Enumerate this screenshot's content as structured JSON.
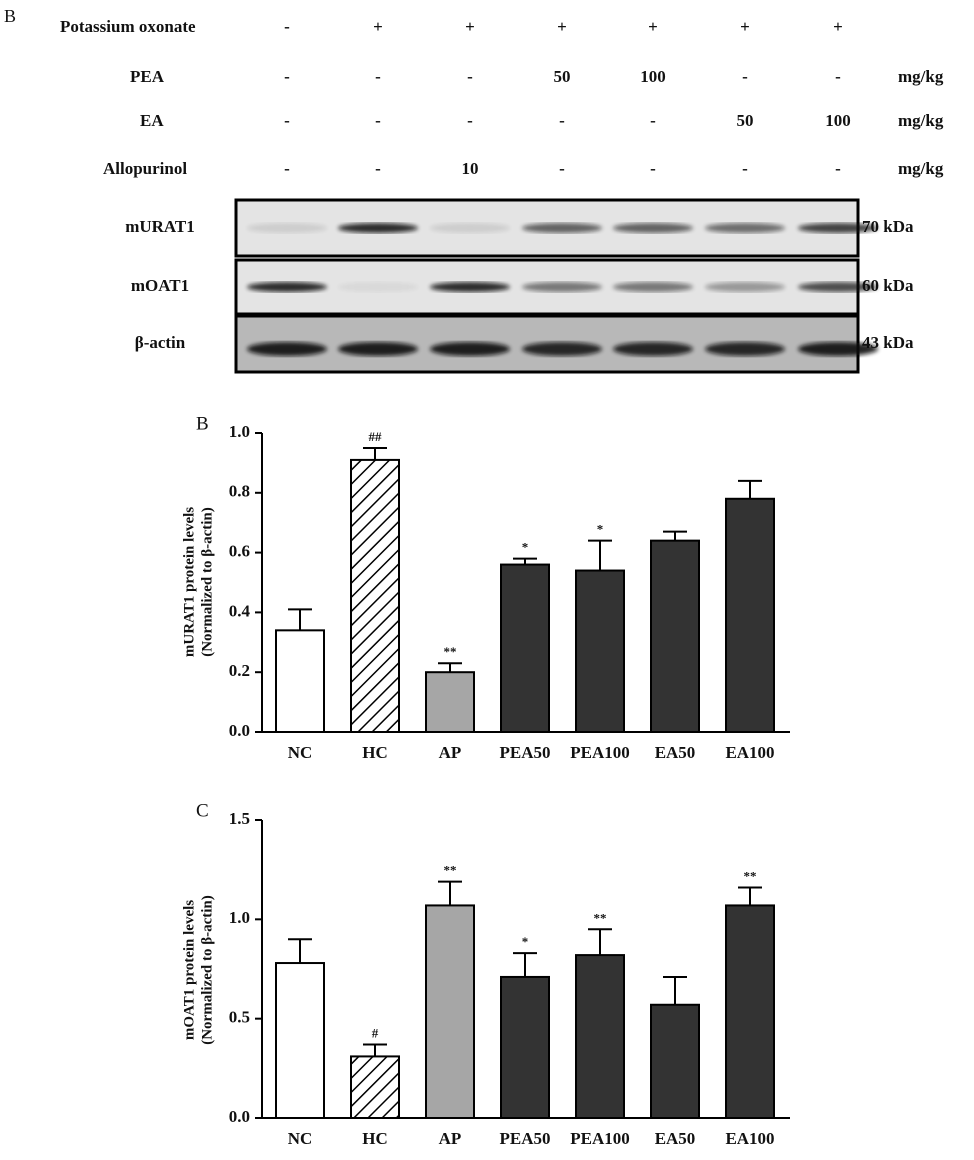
{
  "blot": {
    "panel": "B",
    "rows": [
      {
        "label": "Potassium oxonate",
        "cells": [
          "-",
          "+",
          "+",
          "+",
          "+",
          "+",
          "+"
        ]
      },
      {
        "label": "PEA",
        "cells": [
          "-",
          "-",
          "-",
          "50",
          "100",
          "-",
          "-"
        ],
        "unit": "mg/kg"
      },
      {
        "label": "EA",
        "cells": [
          "-",
          "-",
          "-",
          "-",
          "-",
          "50",
          "100"
        ],
        "unit": "mg/kg"
      },
      {
        "label": "Allopurinol",
        "cells": [
          "-",
          "-",
          "10",
          "-",
          "-",
          "-",
          "-"
        ],
        "unit": "mg/kg"
      }
    ],
    "bands": [
      {
        "label": "mURAT1",
        "size": "70 kDa"
      },
      {
        "label": "mOAT1",
        "size": "60 kDa"
      },
      {
        "label": "β-actin",
        "size": "43 kDa"
      }
    ]
  },
  "chart_data": [
    {
      "type": "bar",
      "panel": "B",
      "ylabel": [
        "mURAT1 protein levels",
        "(Normalized to β-actin)"
      ],
      "categories": [
        "NC",
        "HC",
        "AP",
        "PEA50",
        "PEA100",
        "EA50",
        "EA100"
      ],
      "values": [
        0.34,
        0.91,
        0.2,
        0.56,
        0.54,
        0.64,
        0.78
      ],
      "errors": [
        0.07,
        0.04,
        0.03,
        0.02,
        0.1,
        0.03,
        0.06
      ],
      "annotations": [
        null,
        "##",
        "**",
        "*",
        "*",
        null,
        null
      ],
      "colors": [
        "#ffffff",
        "#ffffff",
        "#a6a6a6",
        "#333333",
        "#333333",
        "#333333",
        "#333333"
      ],
      "hatched": [
        false,
        true,
        false,
        false,
        false,
        false,
        false
      ],
      "ylim": [
        0,
        1
      ],
      "yticks": [
        {
          "value": 0,
          "label": "0.0"
        },
        0.2,
        0.4,
        0.6,
        0.8,
        {
          "value": 1,
          "label": "1.0"
        }
      ]
    },
    {
      "type": "bar",
      "panel": "C",
      "ylabel": [
        "mOAT1 protein levels",
        "(Normalized to β-actin)"
      ],
      "categories": [
        "NC",
        "HC",
        "AP",
        "PEA50",
        "PEA100",
        "EA50",
        "EA100"
      ],
      "values": [
        0.78,
        0.31,
        1.07,
        0.71,
        0.82,
        0.57,
        1.07
      ],
      "errors": [
        0.12,
        0.06,
        0.12,
        0.12,
        0.13,
        0.14,
        0.09
      ],
      "annotations": [
        null,
        "#",
        "**",
        "*",
        "**",
        null,
        "**"
      ],
      "colors": [
        "#ffffff",
        "#ffffff",
        "#a6a6a6",
        "#333333",
        "#333333",
        "#333333",
        "#333333"
      ],
      "hatched": [
        false,
        true,
        false,
        false,
        false,
        false,
        false
      ],
      "ylim": [
        0,
        1.5
      ],
      "yticks": [
        {
          "value": 0,
          "label": "0.0"
        },
        0.5,
        {
          "value": 1,
          "label": "1.0"
        },
        1.5
      ]
    }
  ]
}
